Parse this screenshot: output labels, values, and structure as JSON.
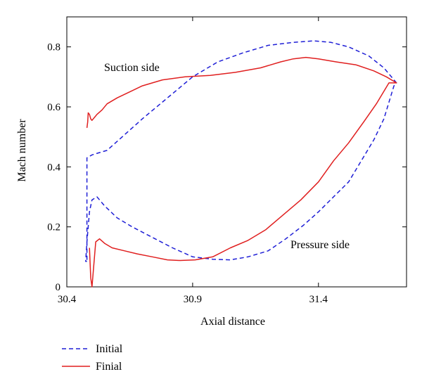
{
  "chart_data": {
    "type": "line",
    "title": "",
    "xlabel": "Axial distance",
    "ylabel": "Mach number",
    "xlim": [
      30.4,
      31.75
    ],
    "ylim": [
      0,
      0.9
    ],
    "xticks": [
      30.4,
      30.9,
      31.4
    ],
    "xtick_labels": [
      "30.4",
      "30.9",
      "31.4"
    ],
    "yticks": [
      0,
      0.2,
      0.4,
      0.6,
      0.8
    ],
    "ytick_labels": [
      "0",
      "0.2",
      "0.4",
      "0.6",
      "0.8"
    ],
    "grid": false,
    "legend_position": "bottom-left, below plot",
    "annotations": [
      "Suction side",
      "Pressure side"
    ],
    "series": [
      {
        "name": "Initial",
        "color": "#1f1fd6",
        "style": "dashed",
        "x": [
          30.48,
          30.48,
          30.49,
          30.5,
          30.52,
          30.56,
          30.62,
          30.7,
          30.8,
          30.9,
          31.0,
          31.1,
          31.2,
          31.3,
          31.38,
          31.45,
          31.52,
          31.6,
          31.66,
          31.71,
          31.7,
          31.66,
          31.62,
          31.57,
          31.52,
          31.46,
          31.4,
          31.34,
          31.27,
          31.2,
          31.12,
          31.05,
          30.98,
          30.9,
          30.82,
          30.74,
          30.66,
          30.6,
          30.55,
          30.52,
          30.5,
          30.49,
          30.48,
          30.475,
          30.48
        ],
        "y": [
          0.09,
          0.43,
          0.435,
          0.44,
          0.445,
          0.455,
          0.5,
          0.56,
          0.63,
          0.7,
          0.75,
          0.78,
          0.805,
          0.815,
          0.82,
          0.815,
          0.8,
          0.77,
          0.73,
          0.68,
          0.67,
          0.56,
          0.49,
          0.42,
          0.35,
          0.3,
          0.25,
          0.205,
          0.16,
          0.12,
          0.1,
          0.09,
          0.092,
          0.1,
          0.13,
          0.165,
          0.2,
          0.23,
          0.27,
          0.3,
          0.29,
          0.25,
          0.15,
          0.085,
          0.085
        ]
      },
      {
        "name": "Finial",
        "color": "#e01f1f",
        "style": "solid",
        "x": [
          30.48,
          30.483,
          30.485,
          30.49,
          30.495,
          30.5,
          30.51,
          30.52,
          30.54,
          30.56,
          30.6,
          30.65,
          30.7,
          30.78,
          30.87,
          30.97,
          31.07,
          31.17,
          31.25,
          31.3,
          31.35,
          31.4,
          31.47,
          31.55,
          31.62,
          31.67,
          31.71,
          31.68,
          31.63,
          31.58,
          31.52,
          31.46,
          31.4,
          31.33,
          31.26,
          31.19,
          31.12,
          31.05,
          30.98,
          30.91,
          30.85,
          30.8,
          30.74,
          30.68,
          30.63,
          30.58,
          30.55,
          30.53,
          30.515,
          30.5,
          30.495,
          30.49
        ],
        "y": [
          0.53,
          0.55,
          0.58,
          0.575,
          0.56,
          0.555,
          0.565,
          0.575,
          0.59,
          0.61,
          0.63,
          0.65,
          0.67,
          0.69,
          0.7,
          0.705,
          0.715,
          0.73,
          0.75,
          0.76,
          0.765,
          0.76,
          0.75,
          0.74,
          0.72,
          0.7,
          0.68,
          0.68,
          0.61,
          0.55,
          0.48,
          0.42,
          0.35,
          0.29,
          0.24,
          0.19,
          0.155,
          0.13,
          0.1,
          0.09,
          0.088,
          0.09,
          0.1,
          0.11,
          0.12,
          0.13,
          0.145,
          0.16,
          0.15,
          0.0,
          0.03,
          0.13
        ]
      }
    ]
  }
}
